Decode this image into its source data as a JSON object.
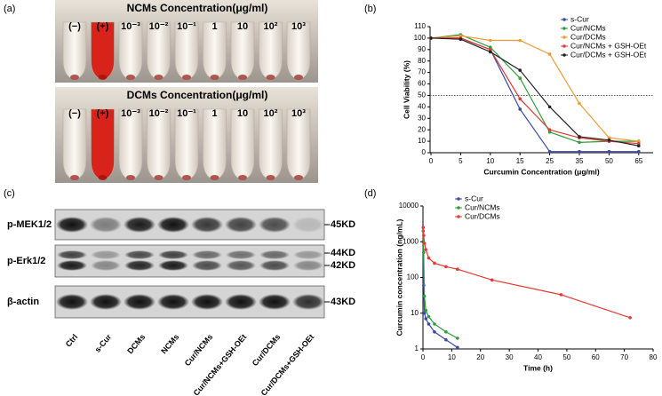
{
  "panel_a": {
    "panel_label": "(a)",
    "photos": [
      {
        "title": "NCMs Concentration(μg/ml)",
        "tube_labels": [
          "(−)",
          "(+)",
          "10⁻³",
          "10⁻²",
          "10⁻¹",
          "1",
          "10",
          "10²",
          "10³"
        ]
      },
      {
        "title": "DCMs Concentration(μg/ml)",
        "tube_labels": [
          "(−)",
          "(+)",
          "10⁻³",
          "10⁻²",
          "10⁻¹",
          "1",
          "10",
          "10²",
          "10³"
        ]
      }
    ]
  },
  "chart_data": [
    {
      "type": "line",
      "panel_label": "(b)",
      "x_label": "Curcumin Concentration (μg/ml)",
      "y_label": "Cell Viability (%)",
      "categories": [
        "0",
        "5",
        "10",
        "15",
        "25",
        "35",
        "50",
        "65"
      ],
      "ylim": [
        0,
        110
      ],
      "yticks": [
        0,
        10,
        20,
        30,
        40,
        50,
        60,
        70,
        80,
        90,
        100,
        110
      ],
      "hline": 50,
      "legend": "upper right",
      "series": [
        {
          "name": "s-Cur",
          "color": "#3949ab",
          "values": [
            100,
            100,
            90,
            38,
            1,
            1,
            1,
            1
          ]
        },
        {
          "name": "Cur/NCMs",
          "color": "#2e9e3a",
          "values": [
            100,
            103,
            92,
            65,
            18,
            9,
            10,
            10
          ]
        },
        {
          "name": "Cur/DCMs",
          "color": "#f39a32",
          "values": [
            100,
            102,
            98,
            98,
            86,
            43,
            13,
            10
          ]
        },
        {
          "name": "Cur/NCMs + GSH-OEt",
          "color": "#e53935",
          "values": [
            100,
            100,
            90,
            47,
            20,
            13,
            10,
            8
          ]
        },
        {
          "name": "Cur/DCMs + GSH-OEt",
          "color": "#222222",
          "values": [
            100,
            99,
            88,
            72,
            40,
            14,
            11,
            6
          ]
        }
      ]
    },
    {
      "type": "line",
      "panel_label": "(d)",
      "x_label": "Time (h)",
      "y_label": "Curcumin concentration (ng/mL)",
      "log_y": true,
      "xlim": [
        0,
        80
      ],
      "xticks": [
        0,
        10,
        20,
        30,
        40,
        50,
        60,
        70,
        80
      ],
      "ylim": [
        1,
        10000
      ],
      "yticks": [
        1,
        10,
        100,
        1000,
        10000
      ],
      "legend": "upper left",
      "series": [
        {
          "name": "s-Cur",
          "color": "#3949ab",
          "x": [
            0.08,
            0.25,
            0.5,
            1,
            2,
            4,
            8,
            12
          ],
          "values": [
            1000,
            60,
            10,
            7,
            5,
            3,
            1.8,
            1.1
          ]
        },
        {
          "name": "Cur/NCMs",
          "color": "#2e9e3a",
          "x": [
            0.08,
            0.25,
            0.5,
            1,
            2,
            4,
            8,
            12
          ],
          "values": [
            2000,
            500,
            30,
            12,
            8,
            5,
            3,
            2
          ]
        },
        {
          "name": "Cur/DCMs",
          "color": "#e53935",
          "x": [
            0.08,
            0.25,
            0.5,
            1,
            2,
            4,
            8,
            12,
            24,
            48,
            72
          ],
          "values": [
            2500,
            1500,
            900,
            600,
            350,
            250,
            200,
            170,
            85,
            33,
            7.5
          ]
        }
      ]
    }
  ],
  "panel_c": {
    "panel_label": "(c)",
    "row_labels": [
      "p-MEK1/2",
      "p-Erk1/2",
      "β-actin"
    ],
    "size_labels": [
      "45KD",
      "44KD",
      "42KD",
      "43KD"
    ],
    "lanes": [
      "Ctrl",
      "s-Cur",
      "DCMs",
      "NCMs",
      "Cur/NCMs",
      "Cur/NCMs+GSH-OEt",
      "Cur/DCMs",
      "Cur/DCMs+GSH-OEt"
    ]
  }
}
